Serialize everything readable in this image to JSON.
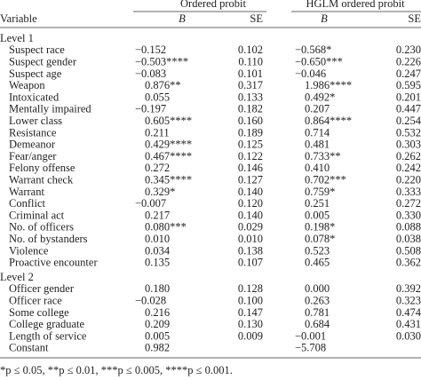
{
  "table": {
    "groups": [
      "Ordered probit",
      "HGLM ordered probit"
    ],
    "columns": [
      "Variable",
      "B",
      "SE",
      "B",
      "SE"
    ],
    "sections": [
      {
        "title": "Level 1",
        "rows": [
          [
            "Suspect race",
            "−0.152",
            "0.102",
            "−0.568*",
            "0.230"
          ],
          [
            "Suspect gender",
            "−0.503****",
            "0.110",
            "−0.650***",
            "0.226"
          ],
          [
            "Suspect age",
            "−0.083",
            "0.101",
            "−0.046",
            "0.247"
          ],
          [
            "Weapon",
            "0.876**",
            "0.317",
            "1.986****",
            "0.595"
          ],
          [
            "Intoxicated",
            "0.055",
            "0.133",
            "0.492*",
            "0.201"
          ],
          [
            "Mentally impaired",
            "−0.197",
            "0.182",
            "0.207",
            "0.447"
          ],
          [
            "Lower class",
            "0.605****",
            "0.160",
            "0.864****",
            "0.254"
          ],
          [
            "Resistance",
            "0.211",
            "0.189",
            "0.714",
            "0.532"
          ],
          [
            "Demeanor",
            "0.429****",
            "0.125",
            "0.481",
            "0.303"
          ],
          [
            "Fear/anger",
            "0.467****",
            "0.122",
            "0.733**",
            "0.262"
          ],
          [
            "Felony offense",
            "0.272",
            "0.146",
            "0.410",
            "0.242"
          ],
          [
            "Warrant check",
            "0.345****",
            "0.127",
            "0.702***",
            "0.220"
          ],
          [
            "Warrant",
            "0.329*",
            "0.140",
            "0.759*",
            "0.333"
          ],
          [
            "Conflict",
            "−0.007",
            "0.120",
            "0.251",
            "0.272"
          ],
          [
            "Criminal act",
            "0.217",
            "0.140",
            "0.005",
            "0.330"
          ],
          [
            "No. of officers",
            "0.080***",
            "0.029",
            "0.198*",
            "0.088"
          ],
          [
            "No. of bystanders",
            "0.010",
            "0.010",
            "0.078*",
            "0.038"
          ],
          [
            "Violence",
            "0.034",
            "0.138",
            "0.523",
            "0.508"
          ],
          [
            "Proactive encounter",
            "0.135",
            "0.107",
            "0.465",
            "0.362"
          ]
        ]
      },
      {
        "title": "Level 2",
        "rows": [
          [
            "Officer gender",
            "0.180",
            "0.128",
            "0.000",
            "0.392"
          ],
          [
            "Officer race",
            "−0.028",
            "0.100",
            "0.263",
            "0.323"
          ],
          [
            "Some college",
            "0.216",
            "0.147",
            "0.781",
            "0.474"
          ],
          [
            "College graduate",
            "0.209",
            "0.130",
            "0.684",
            "0.431"
          ],
          [
            "Length of service",
            "0.005",
            "0.009",
            "−0.001",
            "0.030"
          ],
          [
            "Constant",
            "0.982",
            null,
            "−5.708",
            null
          ]
        ]
      }
    ],
    "footnote": "*p ≤ 0.05, **p ≤ 0.01, ***p ≤ 0.005, ****p ≤ 0.001."
  }
}
